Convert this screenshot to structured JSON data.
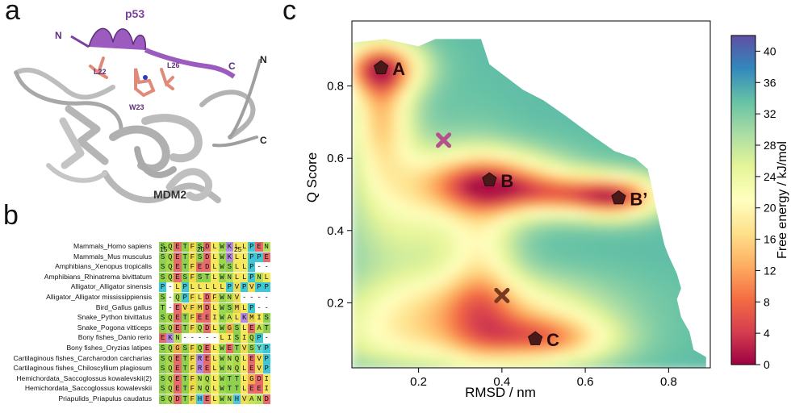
{
  "panels": {
    "a": "a",
    "b": "b",
    "c": "c"
  },
  "panel_a": {
    "title": "p53",
    "residues": [
      "L22",
      "W23",
      "L26"
    ],
    "termini": {
      "p53_n": "N",
      "p53_c": "C",
      "mdm2_n": "N",
      "mdm2_c": "C"
    },
    "protein_label": "MDM2"
  },
  "panel_b": {
    "positions": [
      "15",
      "20",
      "25"
    ],
    "species": [
      "Mammals_Homo sapiens",
      "Mammals_Mus musculus",
      "Amphibians_Xenopus tropicalis",
      "Amphibians_Rhinatrema bivittatum",
      "Alligator_Alligator sinensis",
      "Alligator_Alligator mississippiensis",
      "Bird_Gallus gallus",
      "Snake_Python bivittatus",
      "Snake_Pogona vitticeps",
      "Bony fishes_Danio rerio",
      "Bony fishes_Oryzias latipes",
      "Cartilaginous fishes_Carcharodon carcharias",
      "Cartilaginous fishes_Chiloscyllium plagiosum",
      "Hemichordata_Saccoglossus kowalevskii(2)",
      "Hemichordata_Saccoglossus kowalevskii",
      "Priapulids_Priapulus caudatus"
    ],
    "sequences": [
      "SQETFSDLWKLLPEN",
      "SQETFSDLWKLLPPE",
      "SQETFEDLWSLLP--",
      "SQESFSTLWNLLPNL",
      "P-LPLLLLLPVPVPP",
      "S-QPFLDFWNV----",
      "T-EVFMDLWSMLP--",
      "SQETFEEIWALKMIS",
      "SQETFQDLWGSLEAT",
      "EKN-----LISIQP-",
      "SQGSFQELWETVSYP",
      "SQETFRELWNQLEVP",
      "SQETFRELWNQLEVP",
      "SQETFNQLWTTLGDI",
      "SQETFNQLWTTLEEI",
      "SQDTFHELWNHVAND"
    ],
    "aa_colors": {
      "S": "#8fd14f",
      "T": "#8fd14f",
      "N": "#b6e05a",
      "Q": "#a9d84a",
      "G": "#f2b04a",
      "E": "#e86a6a",
      "D": "#e86a6a",
      "K": "#b48be0",
      "R": "#b48be0",
      "H": "#4fc6e0",
      "F": "#f0d94a",
      "W": "#9ad94f",
      "Y": "#66d6c8",
      "L": "#f5e85c",
      "I": "#f5e85c",
      "V": "#f0dc55",
      "M": "#e7d24c",
      "A": "#c9e34f",
      "P": "#3fc7d6",
      "C": "#f2a04a",
      "-": "#ffffff"
    }
  },
  "chart_data": {
    "type": "heatmap",
    "title": "",
    "xlabel": "RMSD / nm",
    "ylabel": "Q Score",
    "xlim": [
      0.04,
      0.9
    ],
    "ylim": [
      0.02,
      0.98
    ],
    "xticks": [
      0.2,
      0.4,
      0.6,
      0.8
    ],
    "xtick_labels": [
      "0.2",
      "0.4",
      "0.6",
      "0.8"
    ],
    "yticks": [
      0.2,
      0.4,
      0.6,
      0.8
    ],
    "ytick_labels": [
      "0.2",
      "0.4",
      "0.6",
      "0.8"
    ],
    "colorbar": {
      "label": "Free energy / kJ/mol",
      "range": [
        0,
        42
      ],
      "ticks": [
        0,
        4,
        8,
        12,
        16,
        20,
        24,
        28,
        32,
        36,
        40
      ],
      "tick_labels": [
        "0",
        "4",
        "8",
        "12",
        "16",
        "20",
        "24",
        "28",
        "32",
        "36",
        "40"
      ]
    },
    "states": [
      {
        "label": "A",
        "x": 0.11,
        "y": 0.85,
        "marker": "pentagon"
      },
      {
        "label": "B",
        "x": 0.37,
        "y": 0.54,
        "marker": "pentagon"
      },
      {
        "label": "B’",
        "x": 0.68,
        "y": 0.49,
        "marker": "pentagon"
      },
      {
        "label": "C",
        "x": 0.48,
        "y": 0.1,
        "marker": "pentagon"
      }
    ],
    "crosses": [
      {
        "x": 0.26,
        "y": 0.65,
        "color": "#b4508c"
      },
      {
        "x": 0.4,
        "y": 0.22,
        "color": "#7a3a22"
      }
    ],
    "landscape_boundary": [
      [
        0.04,
        0.03
      ],
      [
        0.04,
        0.92
      ],
      [
        0.12,
        0.93
      ],
      [
        0.2,
        0.91
      ],
      [
        0.24,
        0.93
      ],
      [
        0.35,
        0.93
      ],
      [
        0.37,
        0.86
      ],
      [
        0.45,
        0.79
      ],
      [
        0.5,
        0.76
      ],
      [
        0.55,
        0.72
      ],
      [
        0.62,
        0.66
      ],
      [
        0.67,
        0.62
      ],
      [
        0.72,
        0.6
      ],
      [
        0.75,
        0.57
      ],
      [
        0.76,
        0.52
      ],
      [
        0.77,
        0.46
      ],
      [
        0.78,
        0.41
      ],
      [
        0.79,
        0.36
      ],
      [
        0.8,
        0.33
      ],
      [
        0.82,
        0.28
      ],
      [
        0.83,
        0.24
      ],
      [
        0.82,
        0.21
      ],
      [
        0.83,
        0.16
      ],
      [
        0.85,
        0.12
      ],
      [
        0.86,
        0.07
      ],
      [
        0.89,
        0.05
      ],
      [
        0.89,
        0.02
      ],
      [
        0.04,
        0.02
      ]
    ],
    "basins": [
      {
        "x": 0.11,
        "y": 0.85,
        "sx": 0.07,
        "sy": 0.05,
        "depth": 24
      },
      {
        "x": 0.11,
        "y": 0.72,
        "sx": 0.05,
        "sy": 0.12,
        "depth": 18
      },
      {
        "x": 0.37,
        "y": 0.53,
        "sx": 0.12,
        "sy": 0.06,
        "depth": 26
      },
      {
        "x": 0.58,
        "y": 0.5,
        "sx": 0.12,
        "sy": 0.04,
        "depth": 18
      },
      {
        "x": 0.68,
        "y": 0.49,
        "sx": 0.07,
        "sy": 0.04,
        "depth": 18
      },
      {
        "x": 0.35,
        "y": 0.3,
        "sx": 0.06,
        "sy": 0.18,
        "depth": 12
      },
      {
        "x": 0.33,
        "y": 0.2,
        "sx": 0.2,
        "sy": 0.06,
        "depth": 14
      },
      {
        "x": 0.5,
        "y": 0.1,
        "sx": 0.12,
        "sy": 0.05,
        "depth": 22
      },
      {
        "x": 0.2,
        "y": 0.1,
        "sx": 0.16,
        "sy": 0.06,
        "depth": 12
      },
      {
        "x": 0.17,
        "y": 0.45,
        "sx": 0.1,
        "sy": 0.14,
        "depth": 9
      }
    ],
    "base_energy": 34
  }
}
